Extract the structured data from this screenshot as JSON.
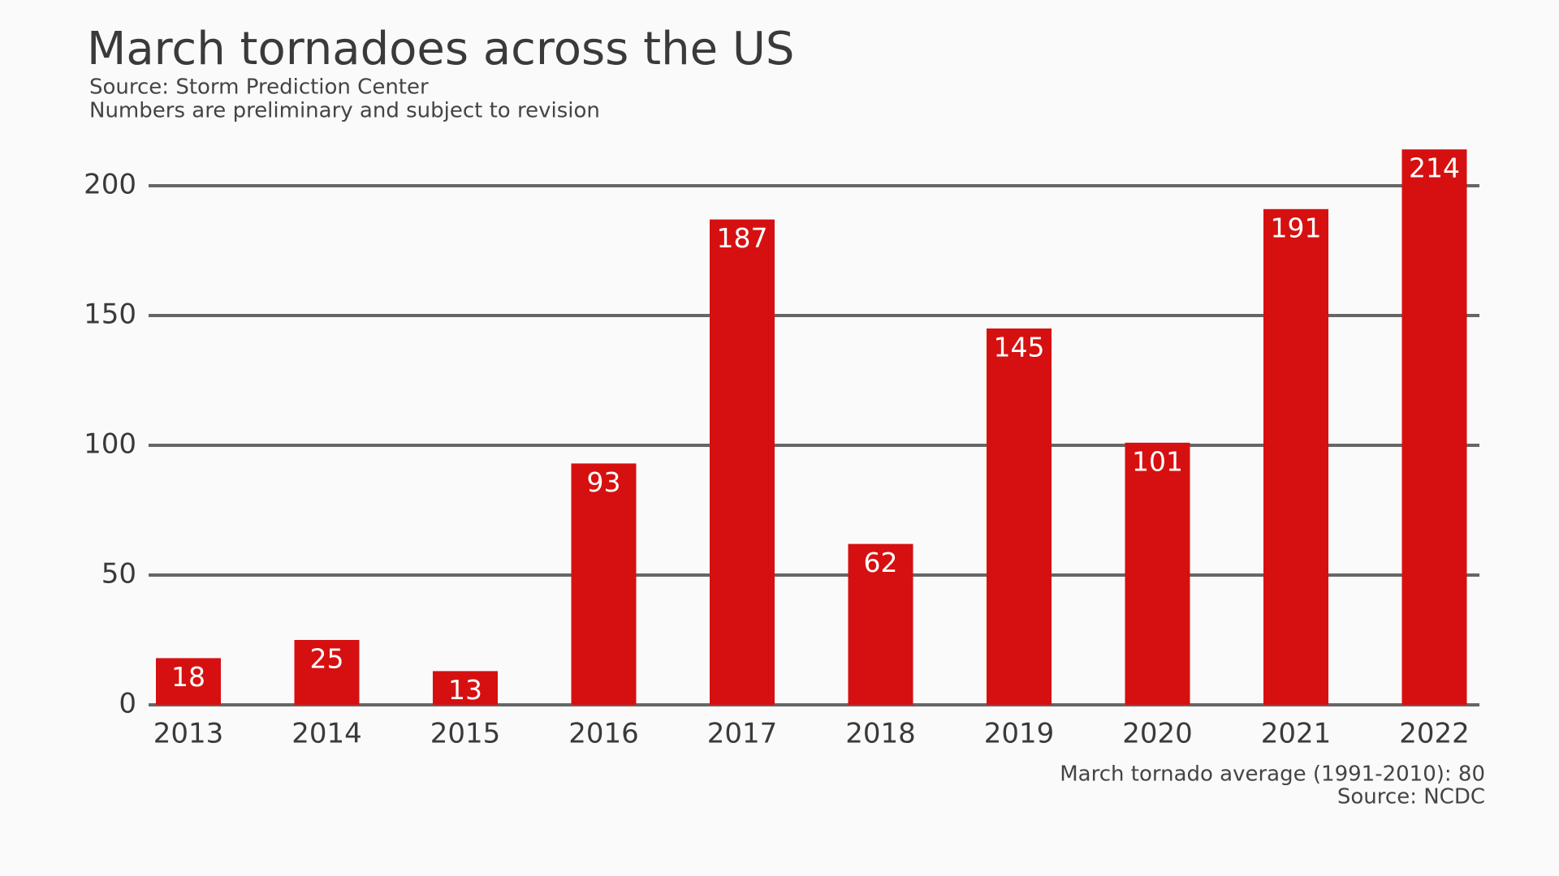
{
  "chart_data": {
    "type": "bar",
    "title": "March tornadoes across the US",
    "subtitle": [
      "Source: Storm Prediction Center",
      "Numbers are preliminary and subject to revision"
    ],
    "categories": [
      "2013",
      "2014",
      "2015",
      "2016",
      "2017",
      "2018",
      "2019",
      "2020",
      "2021",
      "2022"
    ],
    "values": [
      18,
      25,
      13,
      93,
      187,
      62,
      145,
      101,
      191,
      214
    ],
    "color": "#d61010",
    "ylim": [
      0,
      215
    ],
    "yticks": [
      0,
      50,
      100,
      150,
      200
    ],
    "grid": true,
    "notes": [
      "March tornado average (1991-2010): 80",
      "Source: NCDC"
    ]
  }
}
